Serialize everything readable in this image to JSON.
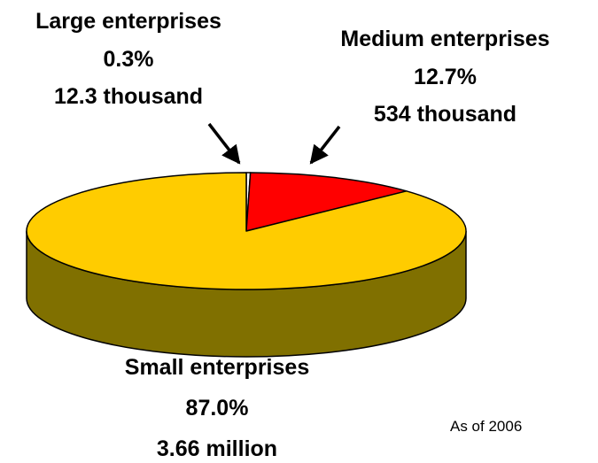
{
  "chart_data": {
    "type": "pie",
    "style": "3d",
    "slices": [
      {
        "label": "Large enterprises",
        "percent_label": "0.3%",
        "count_label": "12.3 thousand",
        "value": 0.3,
        "color": "#FFFFFF"
      },
      {
        "label": "Medium enterprises",
        "percent_label": "12.7%",
        "count_label": "534 thousand",
        "value": 12.7,
        "color": "#FF0000"
      },
      {
        "label": "Small enterprises",
        "percent_label": "87.0%",
        "count_label": "3.66 million",
        "value": 87.0,
        "color": "#FFCC00",
        "side_color": "#807000"
      }
    ]
  },
  "note": "As of 2006"
}
